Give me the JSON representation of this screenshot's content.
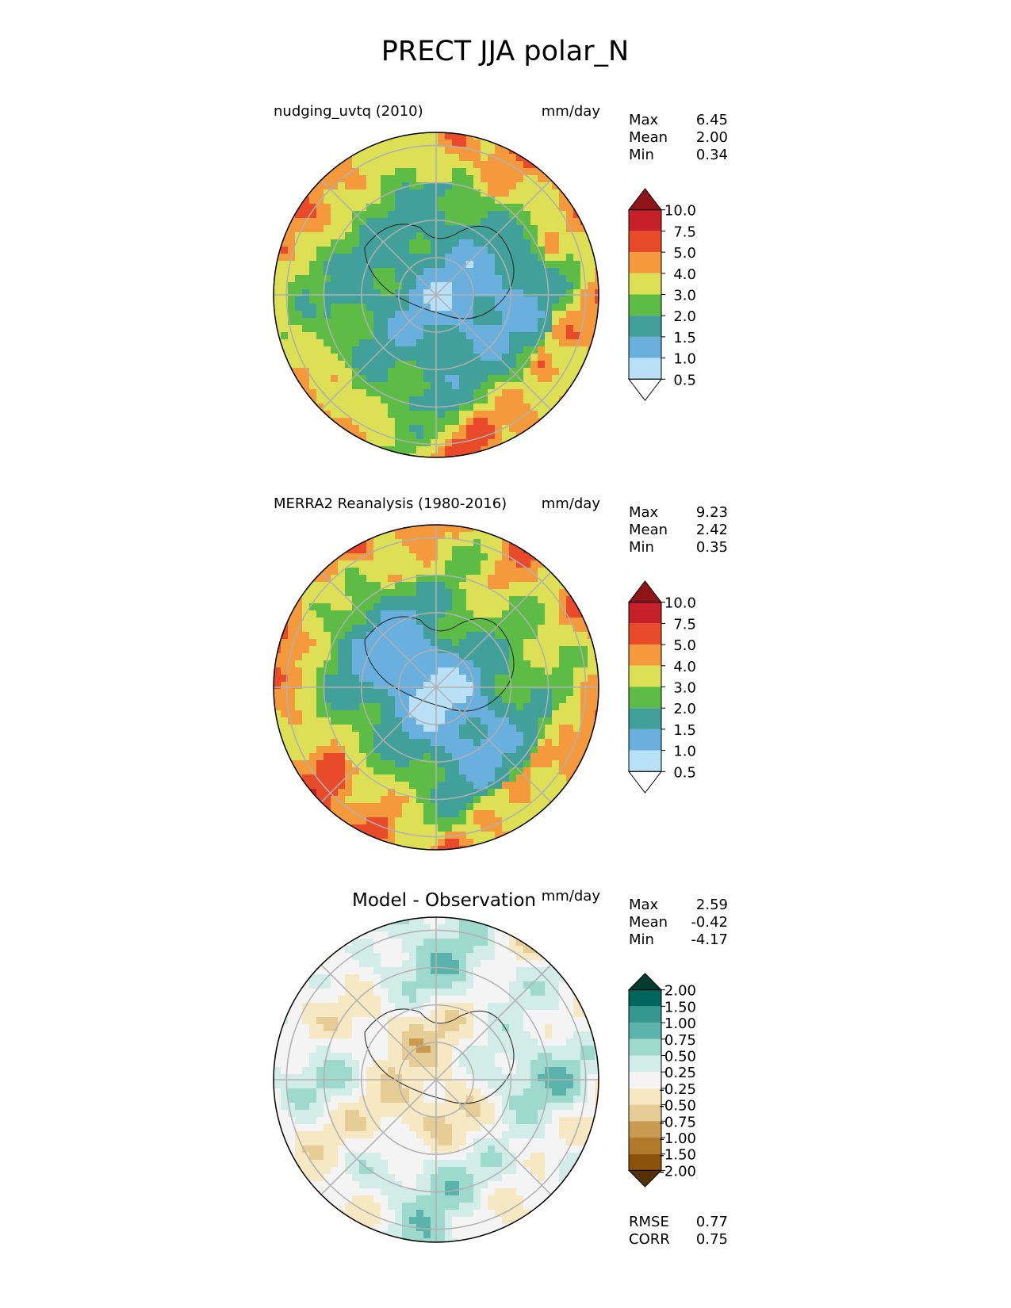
{
  "chart_data": {
    "type": "heatmap",
    "title": "PRECT JJA polar_N",
    "panels": [
      {
        "id": "model",
        "title": "nudging_uvtq (2010)",
        "units": "mm/day",
        "stats": [
          {
            "label": "Max",
            "value": "6.45"
          },
          {
            "label": "Mean",
            "value": "2.00"
          },
          {
            "label": "Min",
            "value": "0.34"
          }
        ],
        "colorbar": {
          "ticks": [
            "10.0",
            "7.5",
            "5.0",
            "4.0",
            "3.0",
            "2.0",
            "1.5",
            "1.0",
            "0.5"
          ],
          "colors": [
            "#8e1418",
            "#c8202a",
            "#e84a2a",
            "#f59a3c",
            "#dde055",
            "#5cbc46",
            "#42a09a",
            "#6ab0de",
            "#b8e0f6",
            "#ffffff"
          ]
        }
      },
      {
        "id": "obs",
        "title": "MERRA2 Reanalysis (1980-2016)",
        "units": "mm/day",
        "stats": [
          {
            "label": "Max",
            "value": "9.23"
          },
          {
            "label": "Mean",
            "value": "2.42"
          },
          {
            "label": "Min",
            "value": "0.35"
          }
        ],
        "colorbar": {
          "ticks": [
            "10.0",
            "7.5",
            "5.0",
            "4.0",
            "3.0",
            "2.0",
            "1.5",
            "1.0",
            "0.5"
          ],
          "colors": [
            "#8e1418",
            "#c8202a",
            "#e84a2a",
            "#f59a3c",
            "#dde055",
            "#5cbc46",
            "#42a09a",
            "#6ab0de",
            "#b8e0f6",
            "#ffffff"
          ]
        }
      },
      {
        "id": "diff",
        "title": "Model - Observation",
        "units": "mm/day",
        "stats": [
          {
            "label": "Max",
            "value": "2.59"
          },
          {
            "label": "Mean",
            "value": "-0.42"
          },
          {
            "label": "Min",
            "value": "-4.17"
          }
        ],
        "colorbar": {
          "ticks": [
            "2.00",
            "1.50",
            "1.00",
            "0.75",
            "0.50",
            "0.25",
            "-0.25",
            "-0.50",
            "-0.75",
            "-1.00",
            "-1.50",
            "-2.00"
          ],
          "colors": [
            "#003c30",
            "#01665e",
            "#35978f",
            "#5ab4ac",
            "#9dd9cd",
            "#d2ece8",
            "#f4f4f4",
            "#f6e8c3",
            "#e6cd95",
            "#c89a52",
            "#b07a2a",
            "#8c510a",
            "#543005"
          ]
        },
        "metrics": [
          {
            "label": "RMSE",
            "value": "0.77"
          },
          {
            "label": "CORR",
            "value": "0.75"
          }
        ]
      }
    ],
    "projection": "north polar stereographic",
    "field_note": "Filled-contour precipitation fields; spatial detail approximated from the figure."
  }
}
